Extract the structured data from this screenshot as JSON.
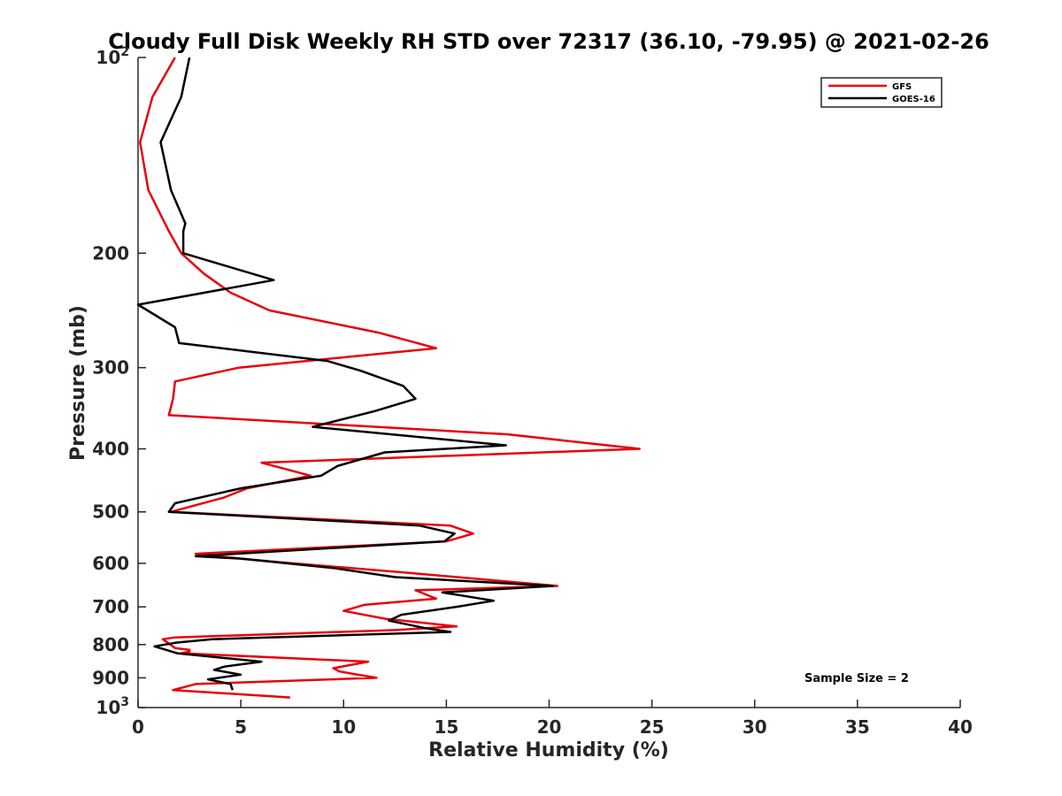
{
  "chart_data": {
    "type": "line",
    "title": "Cloudy Full Disk Weekly RH STD over 72317 (36.10, -79.95) @ 2021-02-26",
    "xlabel": "Relative Humidity (%)",
    "ylabel": "Pressure (mb)",
    "xlim": [
      0,
      40
    ],
    "ylim": [
      100,
      1000
    ],
    "yscale": "log",
    "y_reversed": true,
    "x_ticks": [
      0,
      5,
      10,
      15,
      20,
      25,
      30,
      35,
      40
    ],
    "x_tick_labels": [
      "0",
      "5",
      "10",
      "15",
      "20",
      "25",
      "30",
      "35",
      "40"
    ],
    "y_ticks": [
      {
        "value": 100,
        "label": "10",
        "sup": "2"
      },
      {
        "value": 200,
        "label": "200",
        "sup": ""
      },
      {
        "value": 300,
        "label": "300",
        "sup": ""
      },
      {
        "value": 400,
        "label": "400",
        "sup": ""
      },
      {
        "value": 500,
        "label": "500",
        "sup": ""
      },
      {
        "value": 600,
        "label": "600",
        "sup": ""
      },
      {
        "value": 700,
        "label": "700",
        "sup": ""
      },
      {
        "value": 800,
        "label": "800",
        "sup": ""
      },
      {
        "value": 900,
        "label": "900",
        "sup": ""
      },
      {
        "value": 1000,
        "label": "10",
        "sup": "3"
      }
    ],
    "grid": false,
    "legend_position": "top-right",
    "annotation": "Sample Size = 2",
    "series": [
      {
        "name": "GFS",
        "color": "#e8000b",
        "points": [
          [
            1.8,
            100
          ],
          [
            0.7,
            115
          ],
          [
            0.1,
            135
          ],
          [
            0.5,
            160
          ],
          [
            1.5,
            185
          ],
          [
            2.1,
            200
          ],
          [
            3.2,
            215
          ],
          [
            4.5,
            230
          ],
          [
            6.4,
            245
          ],
          [
            11.7,
            265
          ],
          [
            14.5,
            280
          ],
          [
            4.9,
            300
          ],
          [
            1.8,
            315
          ],
          [
            1.7,
            335
          ],
          [
            1.5,
            355
          ],
          [
            18.0,
            380
          ],
          [
            24.4,
            400
          ],
          [
            6.0,
            420
          ],
          [
            8.4,
            440
          ],
          [
            5.3,
            460
          ],
          [
            4.2,
            475
          ],
          [
            1.6,
            500
          ],
          [
            15.2,
            525
          ],
          [
            16.3,
            540
          ],
          [
            15.0,
            555
          ],
          [
            2.8,
            580
          ],
          [
            5.0,
            590
          ],
          [
            7.0,
            598
          ],
          [
            13.0,
            620
          ],
          [
            20.4,
            650
          ],
          [
            13.5,
            660
          ],
          [
            14.5,
            680
          ],
          [
            11.0,
            695
          ],
          [
            10.0,
            710
          ],
          [
            12.0,
            730
          ],
          [
            15.5,
            750
          ],
          [
            12.5,
            760
          ],
          [
            1.8,
            780
          ],
          [
            1.2,
            785
          ],
          [
            1.8,
            810
          ],
          [
            2.5,
            815
          ],
          [
            2.5,
            820
          ],
          [
            2.1,
            825
          ],
          [
            11.2,
            850
          ],
          [
            9.5,
            870
          ],
          [
            9.8,
            880
          ],
          [
            11.6,
            900
          ],
          [
            2.8,
            920
          ],
          [
            1.7,
            940
          ],
          [
            7.4,
            965
          ]
        ]
      },
      {
        "name": "GOES-16",
        "color": "#000000",
        "points": [
          [
            2.5,
            100
          ],
          [
            2.1,
            115
          ],
          [
            1.1,
            135
          ],
          [
            1.6,
            160
          ],
          [
            2.3,
            180
          ],
          [
            2.2,
            185
          ],
          [
            2.2,
            200
          ],
          [
            6.6,
            220
          ],
          [
            0.0,
            240
          ],
          [
            1.8,
            260
          ],
          [
            2.0,
            275
          ],
          [
            9.2,
            293
          ],
          [
            10.8,
            303
          ],
          [
            12.9,
            320
          ],
          [
            13.5,
            335
          ],
          [
            11.5,
            350
          ],
          [
            8.5,
            370
          ],
          [
            17.9,
            395
          ],
          [
            12.0,
            405
          ],
          [
            9.7,
            425
          ],
          [
            8.9,
            440
          ],
          [
            5.0,
            460
          ],
          [
            1.8,
            485
          ],
          [
            1.5,
            500
          ],
          [
            13.7,
            525
          ],
          [
            15.4,
            540
          ],
          [
            14.9,
            555
          ],
          [
            2.8,
            585
          ],
          [
            5.0,
            590
          ],
          [
            9.5,
            610
          ],
          [
            12.5,
            630
          ],
          [
            20.2,
            650
          ],
          [
            14.8,
            665
          ],
          [
            17.3,
            685
          ],
          [
            15.5,
            700
          ],
          [
            12.8,
            720
          ],
          [
            12.2,
            735
          ],
          [
            14.0,
            755
          ],
          [
            15.2,
            765
          ],
          [
            3.6,
            785
          ],
          [
            1.8,
            795
          ],
          [
            0.8,
            805
          ],
          [
            1.9,
            825
          ],
          [
            6.0,
            850
          ],
          [
            4.2,
            865
          ],
          [
            3.7,
            875
          ],
          [
            5.0,
            890
          ],
          [
            3.4,
            905
          ],
          [
            4.5,
            920
          ],
          [
            4.6,
            940
          ]
        ]
      }
    ]
  }
}
